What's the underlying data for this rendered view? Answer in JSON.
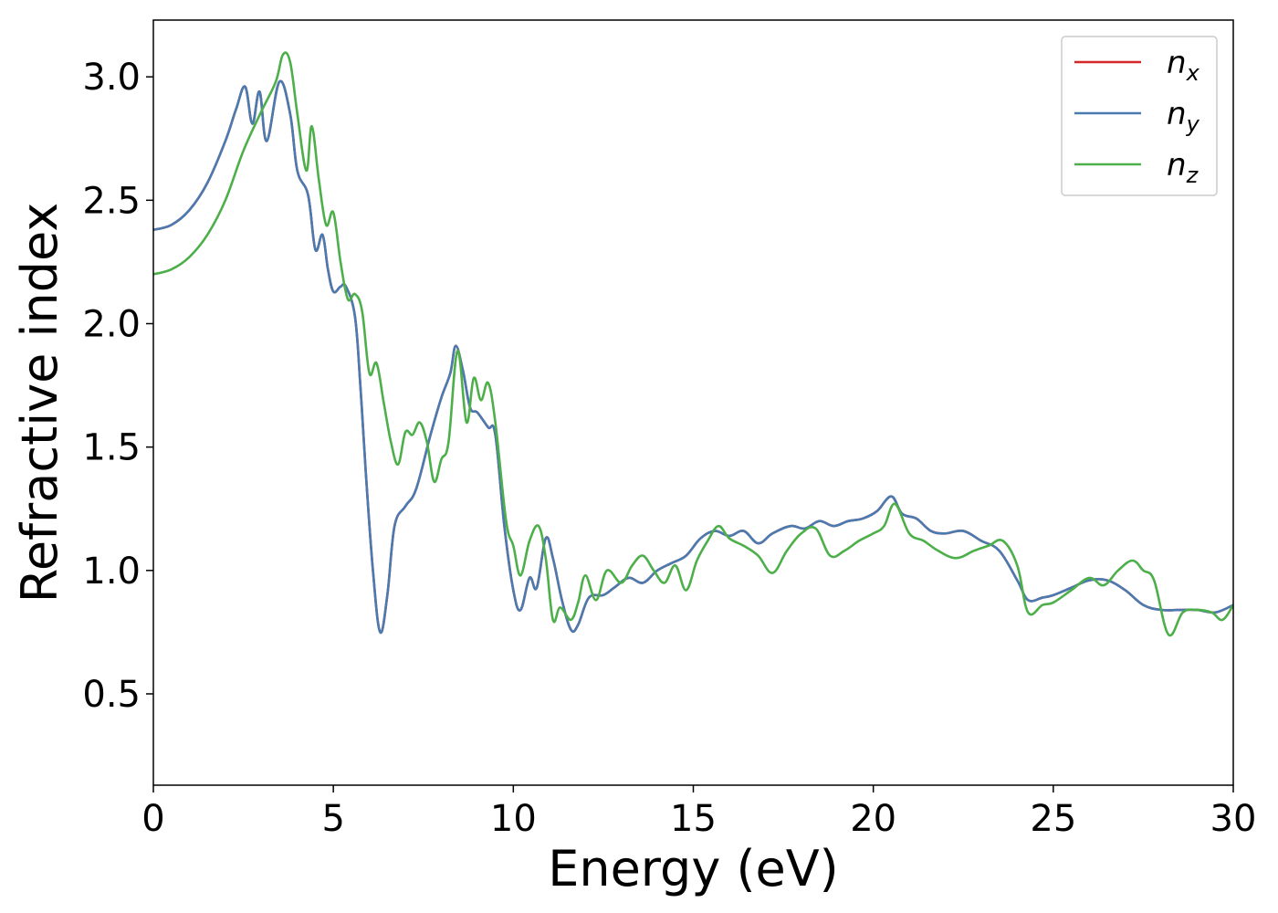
{
  "chart_data": {
    "type": "line",
    "xlabel": "Energy (eV)",
    "ylabel": "Refractive index",
    "xlim": [
      0,
      30
    ],
    "ylim": [
      0.13,
      3.23
    ],
    "xticks": [
      0,
      5,
      10,
      15,
      20,
      25,
      30
    ],
    "xtick_labels": [
      "0",
      "5",
      "10",
      "15",
      "20",
      "25",
      "30"
    ],
    "yticks": [
      0.5,
      1.0,
      1.5,
      2.0,
      2.5,
      3.0
    ],
    "ytick_labels": [
      "0.5",
      "1.0",
      "1.5",
      "2.0",
      "2.5",
      "3.0"
    ],
    "grid": false,
    "legend_position": "top-right",
    "series": [
      {
        "name": "n_x",
        "color": "#d62728",
        "x": [
          0,
          0.5,
          1,
          1.5,
          2,
          2.3,
          2.55,
          2.75,
          2.95,
          3.15,
          3.5,
          3.8,
          4.0,
          4.3,
          4.5,
          4.7,
          4.85,
          5.0,
          5.2,
          5.35,
          5.6,
          5.75,
          5.9,
          6.1,
          6.3,
          6.5,
          6.7,
          7.0,
          7.3,
          7.7,
          8.0,
          8.25,
          8.4,
          8.6,
          8.8,
          9.0,
          9.3,
          9.5,
          9.75,
          10.0,
          10.2,
          10.45,
          10.65,
          10.9,
          11.1,
          11.35,
          11.6,
          11.8,
          12.1,
          12.5,
          12.8,
          13.2,
          13.6,
          14.0,
          14.4,
          14.8,
          15.2,
          15.6,
          16.0,
          16.4,
          16.8,
          17.2,
          17.7,
          18.1,
          18.5,
          18.9,
          19.3,
          19.7,
          20.1,
          20.5,
          20.8,
          21.2,
          21.6,
          22.0,
          22.5,
          23.0,
          23.5,
          24.0,
          24.3,
          24.7,
          25.0,
          25.5,
          26.0,
          26.5,
          27.0,
          27.5,
          28.0,
          28.5,
          29.0,
          29.5,
          30.0
        ],
        "y": [
          2.38,
          2.4,
          2.46,
          2.57,
          2.74,
          2.87,
          2.96,
          2.81,
          2.94,
          2.74,
          2.98,
          2.85,
          2.62,
          2.52,
          2.3,
          2.36,
          2.22,
          2.13,
          2.15,
          2.15,
          2.03,
          1.75,
          1.4,
          1.0,
          0.75,
          0.9,
          1.18,
          1.26,
          1.33,
          1.55,
          1.7,
          1.8,
          1.91,
          1.81,
          1.66,
          1.64,
          1.58,
          1.55,
          1.18,
          0.92,
          0.84,
          0.97,
          0.93,
          1.13,
          1.05,
          0.88,
          0.76,
          0.78,
          0.89,
          0.9,
          0.93,
          0.97,
          0.95,
          1.0,
          1.03,
          1.06,
          1.13,
          1.16,
          1.14,
          1.16,
          1.11,
          1.15,
          1.18,
          1.17,
          1.2,
          1.18,
          1.2,
          1.21,
          1.24,
          1.3,
          1.23,
          1.21,
          1.16,
          1.15,
          1.16,
          1.12,
          1.08,
          0.96,
          0.88,
          0.89,
          0.9,
          0.93,
          0.96,
          0.96,
          0.92,
          0.86,
          0.84,
          0.84,
          0.84,
          0.83,
          0.86
        ]
      },
      {
        "name": "n_y",
        "color": "#4a7bb0",
        "x": [
          0,
          0.5,
          1,
          1.5,
          2,
          2.3,
          2.55,
          2.75,
          2.95,
          3.15,
          3.5,
          3.8,
          4.0,
          4.3,
          4.5,
          4.7,
          4.85,
          5.0,
          5.2,
          5.35,
          5.6,
          5.75,
          5.9,
          6.1,
          6.3,
          6.5,
          6.7,
          7.0,
          7.3,
          7.7,
          8.0,
          8.25,
          8.4,
          8.6,
          8.8,
          9.0,
          9.3,
          9.5,
          9.75,
          10.0,
          10.2,
          10.45,
          10.65,
          10.9,
          11.1,
          11.35,
          11.6,
          11.8,
          12.1,
          12.5,
          12.8,
          13.2,
          13.6,
          14.0,
          14.4,
          14.8,
          15.2,
          15.6,
          16.0,
          16.4,
          16.8,
          17.2,
          17.7,
          18.1,
          18.5,
          18.9,
          19.3,
          19.7,
          20.1,
          20.5,
          20.8,
          21.2,
          21.6,
          22.0,
          22.5,
          23.0,
          23.5,
          24.0,
          24.3,
          24.7,
          25.0,
          25.5,
          26.0,
          26.5,
          27.0,
          27.5,
          28.0,
          28.5,
          29.0,
          29.5,
          30.0
        ],
        "y": [
          2.38,
          2.4,
          2.46,
          2.57,
          2.74,
          2.87,
          2.96,
          2.81,
          2.94,
          2.74,
          2.98,
          2.85,
          2.62,
          2.52,
          2.3,
          2.36,
          2.22,
          2.13,
          2.15,
          2.15,
          2.03,
          1.75,
          1.4,
          1.0,
          0.75,
          0.9,
          1.18,
          1.26,
          1.33,
          1.55,
          1.7,
          1.8,
          1.91,
          1.81,
          1.66,
          1.64,
          1.58,
          1.55,
          1.18,
          0.92,
          0.84,
          0.97,
          0.93,
          1.13,
          1.05,
          0.88,
          0.76,
          0.78,
          0.89,
          0.9,
          0.93,
          0.97,
          0.95,
          1.0,
          1.03,
          1.06,
          1.13,
          1.16,
          1.14,
          1.16,
          1.11,
          1.15,
          1.18,
          1.17,
          1.2,
          1.18,
          1.2,
          1.21,
          1.24,
          1.3,
          1.23,
          1.21,
          1.16,
          1.15,
          1.16,
          1.12,
          1.08,
          0.96,
          0.88,
          0.89,
          0.9,
          0.93,
          0.96,
          0.96,
          0.92,
          0.86,
          0.84,
          0.84,
          0.84,
          0.83,
          0.86
        ]
      },
      {
        "name": "n_z",
        "color": "#4daf4a",
        "x": [
          0,
          0.5,
          1,
          1.5,
          2,
          2.5,
          3.0,
          3.4,
          3.6,
          3.8,
          4.0,
          4.25,
          4.4,
          4.6,
          4.8,
          5.0,
          5.2,
          5.4,
          5.6,
          5.8,
          6.0,
          6.2,
          6.4,
          6.6,
          6.8,
          7.0,
          7.2,
          7.4,
          7.6,
          7.8,
          8.0,
          8.2,
          8.45,
          8.7,
          8.9,
          9.1,
          9.3,
          9.5,
          9.8,
          10.0,
          10.2,
          10.45,
          10.7,
          10.9,
          11.1,
          11.3,
          11.6,
          11.8,
          12.0,
          12.3,
          12.6,
          13.0,
          13.3,
          13.6,
          13.9,
          14.2,
          14.5,
          14.8,
          15.1,
          15.4,
          15.7,
          16.0,
          16.4,
          16.8,
          17.2,
          17.6,
          18.0,
          18.4,
          18.8,
          19.2,
          19.6,
          20.0,
          20.3,
          20.6,
          21.0,
          21.4,
          21.8,
          22.3,
          22.8,
          23.2,
          23.6,
          24.0,
          24.3,
          24.7,
          25.0,
          25.5,
          26.0,
          26.4,
          26.8,
          27.2,
          27.5,
          27.8,
          28.2,
          28.6,
          29.0,
          29.4,
          29.7,
          30.0
        ],
        "y": [
          2.2,
          2.22,
          2.27,
          2.36,
          2.5,
          2.7,
          2.86,
          2.98,
          3.09,
          3.06,
          2.85,
          2.62,
          2.8,
          2.58,
          2.4,
          2.45,
          2.25,
          2.1,
          2.12,
          2.05,
          1.8,
          1.84,
          1.68,
          1.52,
          1.43,
          1.56,
          1.55,
          1.6,
          1.52,
          1.36,
          1.45,
          1.52,
          1.89,
          1.6,
          1.78,
          1.69,
          1.76,
          1.6,
          1.2,
          1.1,
          0.98,
          1.12,
          1.18,
          1.05,
          0.8,
          0.85,
          0.8,
          0.87,
          0.98,
          0.88,
          1.0,
          0.95,
          1.02,
          1.06,
          1.0,
          0.95,
          1.02,
          0.92,
          1.04,
          1.12,
          1.18,
          1.13,
          1.1,
          1.06,
          0.99,
          1.08,
          1.15,
          1.17,
          1.06,
          1.08,
          1.12,
          1.15,
          1.18,
          1.27,
          1.15,
          1.12,
          1.08,
          1.05,
          1.08,
          1.1,
          1.12,
          1.02,
          0.83,
          0.86,
          0.87,
          0.92,
          0.97,
          0.94,
          1.0,
          1.04,
          1.0,
          0.96,
          0.74,
          0.83,
          0.84,
          0.83,
          0.8,
          0.86
        ]
      }
    ],
    "legend_entries": [
      {
        "label_base": "n",
        "label_sub": "x",
        "color": "#d62728"
      },
      {
        "label_base": "n",
        "label_sub": "y",
        "color": "#4a7bb0"
      },
      {
        "label_base": "n",
        "label_sub": "z",
        "color": "#4daf4a"
      }
    ]
  }
}
